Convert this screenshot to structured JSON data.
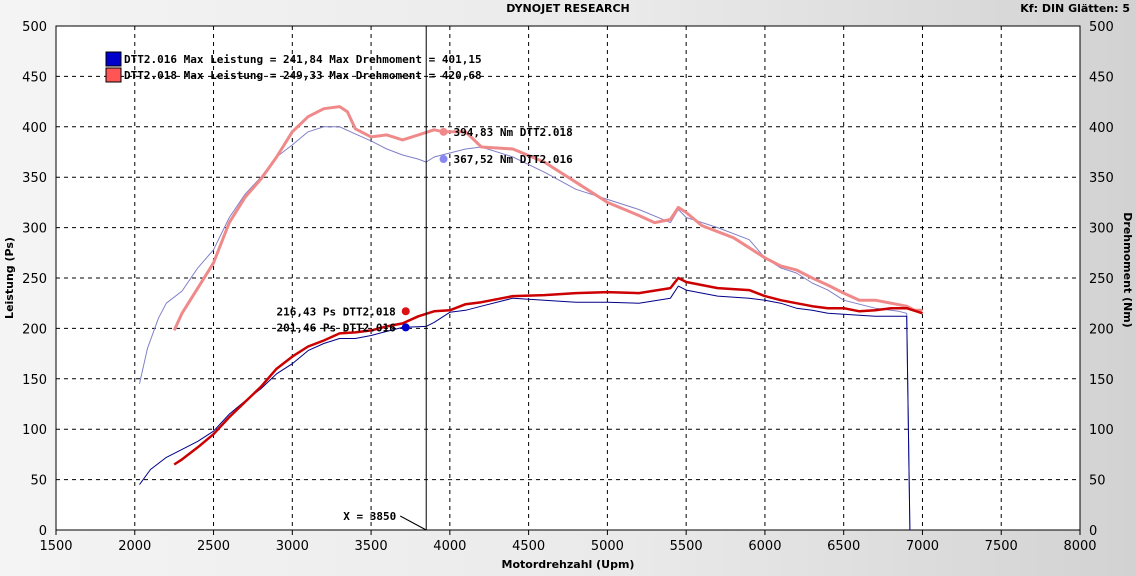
{
  "header": {
    "title": "DYNOJET RESEARCH",
    "settings": "Kf: DIN  Glätten: 5"
  },
  "chart_data": {
    "type": "line",
    "title": "DYNOJET RESEARCH",
    "xlabel": "Motordrehzahl (Upm)",
    "ylabel_left": "Leistung (Ps)",
    "ylabel_right": "Drehmoment (Nm)",
    "xlim": [
      1500,
      8000
    ],
    "ylim": [
      0,
      500
    ],
    "x_ticks": [
      1500,
      2000,
      2500,
      3000,
      3500,
      4000,
      4500,
      5000,
      5500,
      6000,
      6500,
      7000,
      7500,
      8000
    ],
    "y_ticks": [
      0,
      50,
      100,
      150,
      200,
      250,
      300,
      350,
      400,
      450,
      500
    ],
    "grid": true,
    "legend_position": "top-left",
    "legend": [
      {
        "text": "DTT2.016 Max Leistung = 241,84 Max Drehmoment = 401,15",
        "color": "#0000cc"
      },
      {
        "text": "DTT2.018 Max Leistung = 249,33 Max Drehmoment = 420,68",
        "color": "#ff5555"
      }
    ],
    "cursor": {
      "x": 3850,
      "label": "X = 3850"
    },
    "annotations": [
      {
        "text": "394,83 Nm DTT2.018",
        "x": 3960,
        "y": 395,
        "color": "#f08a8a"
      },
      {
        "text": "367,52 Nm DTT2.016",
        "x": 3960,
        "y": 368,
        "color": "#8888ee"
      },
      {
        "text": "216,43 Ps DTT2.018",
        "x": 3720,
        "y": 217,
        "color": "#dd1111"
      },
      {
        "text": "201,46 Ps DTT2.016",
        "x": 3720,
        "y": 201,
        "color": "#0000cc"
      }
    ],
    "series": [
      {
        "name": "DTT2.016",
        "quantity": "Drehmoment",
        "color": "#8080c8",
        "width": 1,
        "points": [
          [
            2030,
            145
          ],
          [
            2080,
            180
          ],
          [
            2150,
            210
          ],
          [
            2200,
            225
          ],
          [
            2300,
            237
          ],
          [
            2400,
            260
          ],
          [
            2500,
            278
          ],
          [
            2600,
            310
          ],
          [
            2700,
            333
          ],
          [
            2800,
            350
          ],
          [
            2900,
            370
          ],
          [
            3000,
            382
          ],
          [
            3100,
            395
          ],
          [
            3200,
            400
          ],
          [
            3300,
            400
          ],
          [
            3400,
            393
          ],
          [
            3500,
            386
          ],
          [
            3600,
            378
          ],
          [
            3700,
            372
          ],
          [
            3800,
            368
          ],
          [
            3850,
            365
          ],
          [
            3900,
            370
          ],
          [
            4000,
            374
          ],
          [
            4100,
            378
          ],
          [
            4200,
            380
          ],
          [
            4400,
            370
          ],
          [
            4600,
            355
          ],
          [
            4800,
            338
          ],
          [
            5000,
            328
          ],
          [
            5200,
            318
          ],
          [
            5400,
            305
          ],
          [
            5450,
            318
          ],
          [
            5500,
            310
          ],
          [
            5700,
            300
          ],
          [
            5900,
            288
          ],
          [
            6000,
            270
          ],
          [
            6100,
            260
          ],
          [
            6200,
            255
          ],
          [
            6300,
            245
          ],
          [
            6400,
            238
          ],
          [
            6500,
            228
          ],
          [
            6600,
            224
          ],
          [
            6700,
            220
          ],
          [
            6800,
            218
          ],
          [
            6850,
            217
          ],
          [
            6900,
            215
          ],
          [
            6920,
            0
          ]
        ]
      },
      {
        "name": "DTT2.018",
        "quantity": "Drehmoment",
        "color": "#f08a8a",
        "width": 3,
        "points": [
          [
            2250,
            198
          ],
          [
            2300,
            215
          ],
          [
            2400,
            240
          ],
          [
            2500,
            265
          ],
          [
            2600,
            305
          ],
          [
            2700,
            330
          ],
          [
            2800,
            348
          ],
          [
            2900,
            370
          ],
          [
            3000,
            395
          ],
          [
            3100,
            410
          ],
          [
            3200,
            418
          ],
          [
            3300,
            420
          ],
          [
            3350,
            415
          ],
          [
            3400,
            398
          ],
          [
            3500,
            390
          ],
          [
            3600,
            392
          ],
          [
            3700,
            387
          ],
          [
            3800,
            392
          ],
          [
            3900,
            397
          ],
          [
            3960,
            395
          ],
          [
            4100,
            395
          ],
          [
            4200,
            380
          ],
          [
            4400,
            378
          ],
          [
            4600,
            365
          ],
          [
            4800,
            345
          ],
          [
            5000,
            325
          ],
          [
            5200,
            312
          ],
          [
            5300,
            305
          ],
          [
            5400,
            308
          ],
          [
            5450,
            320
          ],
          [
            5500,
            315
          ],
          [
            5600,
            302
          ],
          [
            5800,
            290
          ],
          [
            6000,
            270
          ],
          [
            6100,
            262
          ],
          [
            6200,
            258
          ],
          [
            6300,
            250
          ],
          [
            6400,
            243
          ],
          [
            6500,
            235
          ],
          [
            6600,
            228
          ],
          [
            6700,
            228
          ],
          [
            6800,
            225
          ],
          [
            6900,
            222
          ],
          [
            6950,
            218
          ],
          [
            7000,
            218
          ]
        ]
      },
      {
        "name": "DTT2.016",
        "quantity": "Leistung",
        "color": "#000088",
        "width": 1,
        "points": [
          [
            2030,
            45
          ],
          [
            2100,
            60
          ],
          [
            2200,
            72
          ],
          [
            2300,
            80
          ],
          [
            2400,
            88
          ],
          [
            2500,
            98
          ],
          [
            2600,
            115
          ],
          [
            2700,
            128
          ],
          [
            2800,
            140
          ],
          [
            2900,
            155
          ],
          [
            3000,
            165
          ],
          [
            3100,
            178
          ],
          [
            3200,
            185
          ],
          [
            3300,
            190
          ],
          [
            3400,
            190
          ],
          [
            3500,
            193
          ],
          [
            3600,
            197
          ],
          [
            3700,
            201
          ],
          [
            3850,
            202
          ],
          [
            3900,
            206
          ],
          [
            4000,
            216
          ],
          [
            4100,
            218
          ],
          [
            4200,
            222
          ],
          [
            4400,
            230
          ],
          [
            4600,
            228
          ],
          [
            4800,
            226
          ],
          [
            5000,
            226
          ],
          [
            5200,
            225
          ],
          [
            5400,
            230
          ],
          [
            5450,
            242
          ],
          [
            5500,
            238
          ],
          [
            5700,
            232
          ],
          [
            5900,
            230
          ],
          [
            6000,
            228
          ],
          [
            6100,
            225
          ],
          [
            6200,
            220
          ],
          [
            6300,
            218
          ],
          [
            6400,
            215
          ],
          [
            6500,
            214
          ],
          [
            6600,
            213
          ],
          [
            6700,
            212
          ],
          [
            6800,
            212
          ],
          [
            6900,
            212
          ],
          [
            6920,
            0
          ]
        ]
      },
      {
        "name": "DTT2.018",
        "quantity": "Leistung",
        "color": "#cc0000",
        "width": 2.5,
        "points": [
          [
            2250,
            65
          ],
          [
            2300,
            70
          ],
          [
            2400,
            82
          ],
          [
            2500,
            95
          ],
          [
            2600,
            112
          ],
          [
            2700,
            127
          ],
          [
            2800,
            142
          ],
          [
            2900,
            160
          ],
          [
            3000,
            172
          ],
          [
            3100,
            182
          ],
          [
            3200,
            188
          ],
          [
            3300,
            195
          ],
          [
            3400,
            196
          ],
          [
            3500,
            198
          ],
          [
            3600,
            202
          ],
          [
            3700,
            205
          ],
          [
            3800,
            212
          ],
          [
            3900,
            217
          ],
          [
            4000,
            218
          ],
          [
            4100,
            224
          ],
          [
            4200,
            226
          ],
          [
            4400,
            232
          ],
          [
            4600,
            233
          ],
          [
            4800,
            235
          ],
          [
            5000,
            236
          ],
          [
            5200,
            235
          ],
          [
            5400,
            240
          ],
          [
            5450,
            250
          ],
          [
            5500,
            246
          ],
          [
            5700,
            240
          ],
          [
            5900,
            238
          ],
          [
            6000,
            232
          ],
          [
            6100,
            228
          ],
          [
            6200,
            225
          ],
          [
            6300,
            222
          ],
          [
            6400,
            220
          ],
          [
            6500,
            220
          ],
          [
            6600,
            217
          ],
          [
            6700,
            218
          ],
          [
            6800,
            220
          ],
          [
            6900,
            220
          ],
          [
            7000,
            215
          ]
        ]
      }
    ]
  }
}
